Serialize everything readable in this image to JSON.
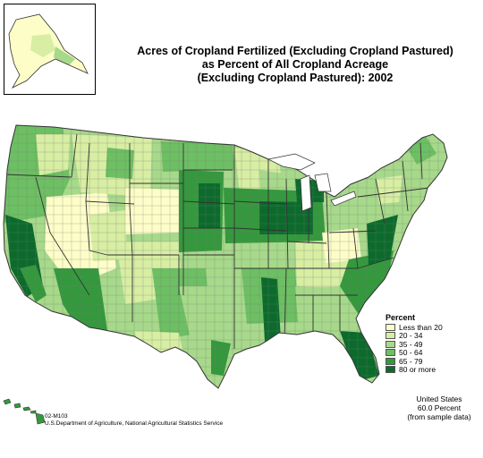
{
  "title": {
    "line1": "Acres of Cropland Fertilized (Excluding Cropland Pastured)",
    "line2": "as Percent of All Cropland Acreage",
    "line3": "(Excluding Cropland Pastured):  2002"
  },
  "legend": {
    "title": "Percent",
    "items": [
      {
        "label": "Less than 20",
        "color": "#fdfdc8"
      },
      {
        "label": "20 - 34",
        "color": "#d7eea3"
      },
      {
        "label": "35 - 49",
        "color": "#a7d98a"
      },
      {
        "label": "50 - 64",
        "color": "#6dbf63"
      },
      {
        "label": "65 - 79",
        "color": "#34993d"
      },
      {
        "label": "80 or more",
        "color": "#0c6b2c"
      }
    ]
  },
  "us_note": {
    "line1": "United States",
    "line2": "60.0 Percent",
    "line3": "(from sample data)"
  },
  "footer": {
    "code": "02-M103",
    "source": "U.S.Department of Agriculture, National Agricultural Statistics Service"
  },
  "colors": {
    "border": "#606060",
    "state_border": "#333333"
  }
}
